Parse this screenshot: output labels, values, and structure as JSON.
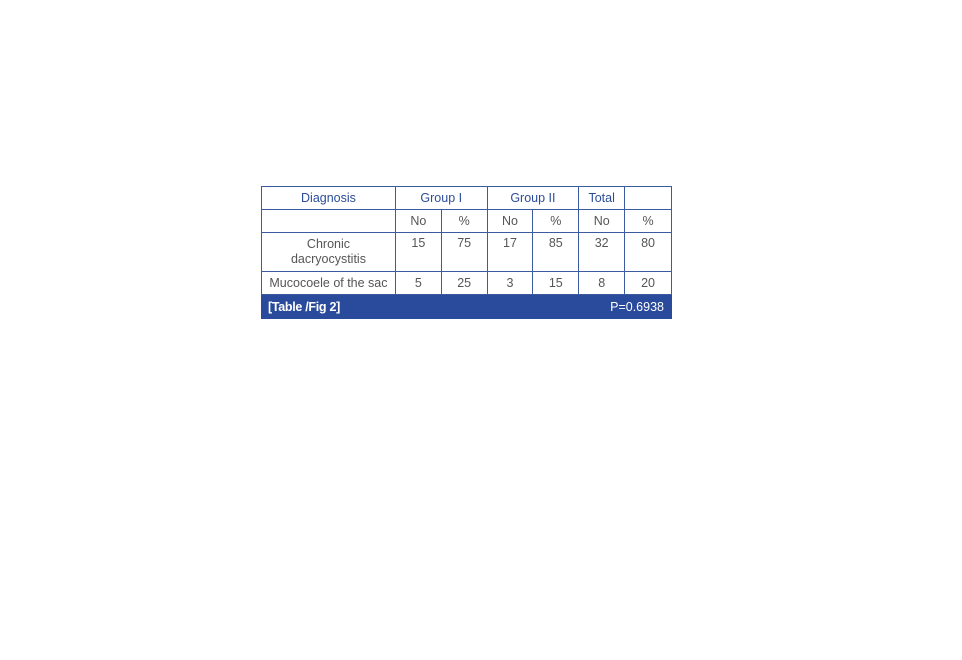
{
  "table": {
    "headers": [
      "Diagnosis",
      "Group I",
      "Group II",
      "Total",
      ""
    ],
    "subheaders": [
      "",
      "No",
      "%",
      "No",
      "%",
      "No",
      "%"
    ],
    "rows": [
      [
        "Chronic dacryocystitis",
        "15",
        "75",
        "17",
        "85",
        "32",
        "80"
      ],
      [
        "Mucocoele of the sac",
        "5",
        "25",
        "3",
        "15",
        "8",
        "20"
      ]
    ],
    "footer": {
      "caption": "[Table /Fig 2]",
      "p_value": "P=0.6938"
    }
  },
  "colors": {
    "accent": "#2a4b9b"
  }
}
